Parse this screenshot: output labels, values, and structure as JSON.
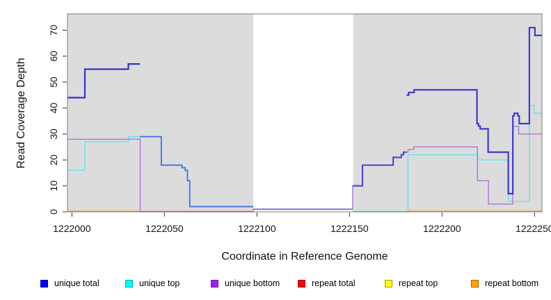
{
  "figure": {
    "background": "#ffffff",
    "plot_bg": "#dcdcdc",
    "masked_bg": "#ffffff",
    "border_color": "#7d7d7d",
    "tick_color": "#333333",
    "text_color": "#111111"
  },
  "chart_data": {
    "type": "line",
    "step": true,
    "title": "",
    "xlabel": "Coordinate in Reference Genome",
    "ylabel": "Read Coverage Depth",
    "xlim": [
      1221997.6,
      1222254
    ],
    "ylim": [
      0,
      76.3
    ],
    "grid": false,
    "legend_position": "bottom",
    "masked_region": [
      1222098,
      1222152
    ],
    "x_ticks": [
      {
        "value": 1222000,
        "label": "1222000"
      },
      {
        "value": 1222050,
        "label": "1222050"
      },
      {
        "value": 1222100,
        "label": "1222100"
      },
      {
        "value": 1222150,
        "label": "1222150"
      },
      {
        "value": 1222200,
        "label": "1222200"
      },
      {
        "value": 1222250,
        "label": "1222250"
      }
    ],
    "y_ticks": [
      {
        "value": 0,
        "label": "0"
      },
      {
        "value": 10,
        "label": "10"
      },
      {
        "value": 20,
        "label": "20"
      },
      {
        "value": 30,
        "label": "30"
      },
      {
        "value": 40,
        "label": "40"
      },
      {
        "value": 50,
        "label": "50"
      },
      {
        "value": 60,
        "label": "60"
      },
      {
        "value": 70,
        "label": "70"
      }
    ],
    "series": [
      {
        "name": "unique total",
        "color": "#3231c8",
        "width": 2.2,
        "end_x": 1222254,
        "color_ranges": [
          {
            "to": 1222036.7,
            "color": "#3231c8",
            "width": 2.2
          },
          {
            "to": 1222098.0,
            "color": "#4b7ae3",
            "width": 2.0
          },
          {
            "to": 1222151.7,
            "color": "#5c55d8",
            "width": 1.5
          },
          {
            "to": 1222180.8,
            "color": "#5b45d6",
            "width": 2.2
          },
          {
            "to": 1222254.0,
            "color": "#3f39d4",
            "width": 2.2
          }
        ],
        "points": [
          [
            1221997.6,
            44
          ],
          [
            1222007,
            55
          ],
          [
            1222030.5,
            57
          ],
          [
            1222036.7,
            29
          ],
          [
            1222048.3,
            18
          ],
          [
            1222059.5,
            17
          ],
          [
            1222061.2,
            16
          ],
          [
            1222062.4,
            12
          ],
          [
            1222063.7,
            2
          ],
          [
            1222098,
            1
          ],
          [
            1222151.7,
            10
          ],
          [
            1222157,
            18
          ],
          [
            1222173.6,
            21
          ],
          [
            1222178,
            22
          ],
          [
            1222179.2,
            23
          ],
          [
            1222180.8,
            45
          ],
          [
            1222182,
            46
          ],
          [
            1222184.9,
            47
          ],
          [
            1222218.9,
            34
          ],
          [
            1222219.7,
            33
          ],
          [
            1222220.6,
            32
          ],
          [
            1222224.9,
            23
          ],
          [
            1222235.8,
            7
          ],
          [
            1222238.3,
            37
          ],
          [
            1222239,
            38
          ],
          [
            1222241,
            37
          ],
          [
            1222241.7,
            34
          ],
          [
            1222247.2,
            71
          ],
          [
            1222250.2,
            68
          ]
        ]
      },
      {
        "name": "unique top",
        "color": "#5fe4ec",
        "width": 1.4,
        "end_x": 1222254,
        "gaps": [
          [
            1222098,
            1222151.7
          ]
        ],
        "points": [
          [
            1221997.6,
            16
          ],
          [
            1222007,
            27
          ],
          [
            1222030.5,
            29
          ],
          [
            1222048.3,
            18
          ],
          [
            1222059.5,
            17
          ],
          [
            1222061.2,
            16
          ],
          [
            1222062.4,
            12
          ],
          [
            1222063.7,
            2
          ],
          [
            1222098,
            0
          ],
          [
            1222181.6,
            22
          ],
          [
            1222219.3,
            20
          ],
          [
            1222235.8,
            4
          ],
          [
            1222247.2,
            41
          ],
          [
            1222249.7,
            38
          ]
        ]
      },
      {
        "name": "unique bottom",
        "color": "#b46fe0",
        "width": 1.4,
        "end_x": 1222254,
        "points": [
          [
            1221997.6,
            28
          ],
          [
            1222036.9,
            0
          ],
          [
            1222098,
            1
          ],
          [
            1222151.7,
            10
          ],
          [
            1222157,
            18
          ],
          [
            1222173.6,
            21
          ],
          [
            1222178,
            22
          ],
          [
            1222179.2,
            23
          ],
          [
            1222181.6,
            24
          ],
          [
            1222184.7,
            25
          ],
          [
            1222219.1,
            12
          ],
          [
            1222225.1,
            3
          ],
          [
            1222238.2,
            33
          ],
          [
            1222241.4,
            30
          ]
        ]
      },
      {
        "name": "repeat total",
        "color": null,
        "width": 1.4,
        "end_x": 1222254,
        "points": [
          [
            1221997.6,
            0
          ]
        ]
      },
      {
        "name": "repeat top",
        "color": null,
        "width": 1.4,
        "end_x": 1222254,
        "points": [
          [
            1221997.6,
            0
          ]
        ]
      },
      {
        "name": "repeat bottom",
        "color": null,
        "width": 1.7,
        "end_x": 1222254,
        "points": [
          [
            1221997.6,
            0
          ]
        ]
      }
    ],
    "baseline_segments": [
      {
        "from": 1221997.6,
        "to": 1222036.9,
        "color": "#ff9100",
        "width": 1.7
      },
      {
        "from": 1222036.9,
        "to": 1222098.0,
        "color": "#d0789a",
        "width": 1.4
      },
      {
        "from": 1222151.7,
        "to": 1222181.6,
        "color": "#8fe58f",
        "width": 1.4
      },
      {
        "from": 1222181.6,
        "to": 1222254.0,
        "color": "#ff9100",
        "width": 1.7
      }
    ]
  },
  "legend": {
    "items": [
      {
        "label": "unique total",
        "fill": "#0000ff",
        "border": "#0000a0"
      },
      {
        "label": "unique top",
        "fill": "#00ffff",
        "border": "#00a0a0"
      },
      {
        "label": "unique bottom",
        "fill": "#a020f0",
        "border": "#7010b0"
      },
      {
        "label": "repeat total",
        "fill": "#ff0000",
        "border": "#a00000"
      },
      {
        "label": "repeat top",
        "fill": "#ffff00",
        "border": "#a0a000"
      },
      {
        "label": "repeat bottom",
        "fill": "#ffa500",
        "border": "#b06000"
      }
    ]
  }
}
